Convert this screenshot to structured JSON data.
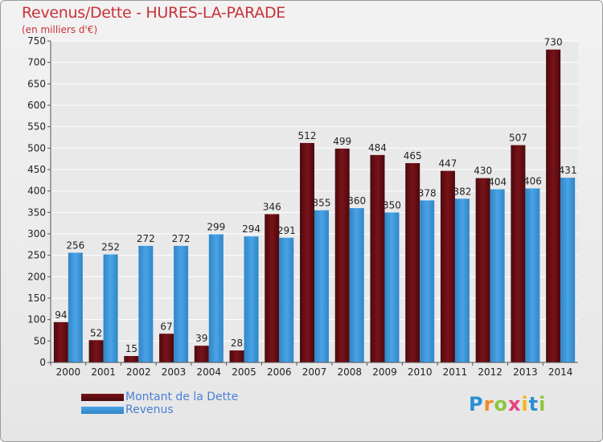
{
  "header": {
    "title": "Revenus/Dette - HURES-LA-PARADE",
    "subtitle": "(en milliers d'€)"
  },
  "colors": {
    "dette": "#7a1218",
    "revenus": "#4aa3e6"
  },
  "logo": {
    "text": "Proxiti",
    "letters": [
      {
        "ch": "P",
        "color": "#2b8fd6"
      },
      {
        "ch": "r",
        "color": "#f08a24"
      },
      {
        "ch": "o",
        "color": "#8cc63f"
      },
      {
        "ch": "x",
        "color": "#e8417a"
      },
      {
        "ch": "i",
        "color": "#f5b51a"
      },
      {
        "ch": "t",
        "color": "#2b8fd6"
      },
      {
        "ch": "i",
        "color": "#8cc63f"
      }
    ]
  },
  "chart_data": {
    "type": "bar",
    "title": "Revenus/Dette - HURES-LA-PARADE",
    "subtitle": "(en milliers d'€)",
    "categories": [
      "2000",
      "2001",
      "2002",
      "2003",
      "2004",
      "2005",
      "2006",
      "2007",
      "2008",
      "2009",
      "2010",
      "2011",
      "2012",
      "2013",
      "2014"
    ],
    "series": [
      {
        "name": "Montant de la Dette",
        "values": [
          94,
          52,
          15,
          67,
          39,
          28,
          346,
          512,
          499,
          484,
          465,
          447,
          430,
          507,
          730
        ]
      },
      {
        "name": "Revenus",
        "values": [
          256,
          252,
          272,
          272,
          299,
          294,
          291,
          355,
          360,
          350,
          378,
          382,
          404,
          406,
          431
        ]
      }
    ],
    "ylim": [
      0,
      750
    ],
    "yticks": [
      0,
      50,
      100,
      150,
      200,
      250,
      300,
      350,
      400,
      450,
      500,
      550,
      600,
      650,
      700,
      750
    ],
    "grid": true,
    "legend_position": "bottom-left"
  }
}
